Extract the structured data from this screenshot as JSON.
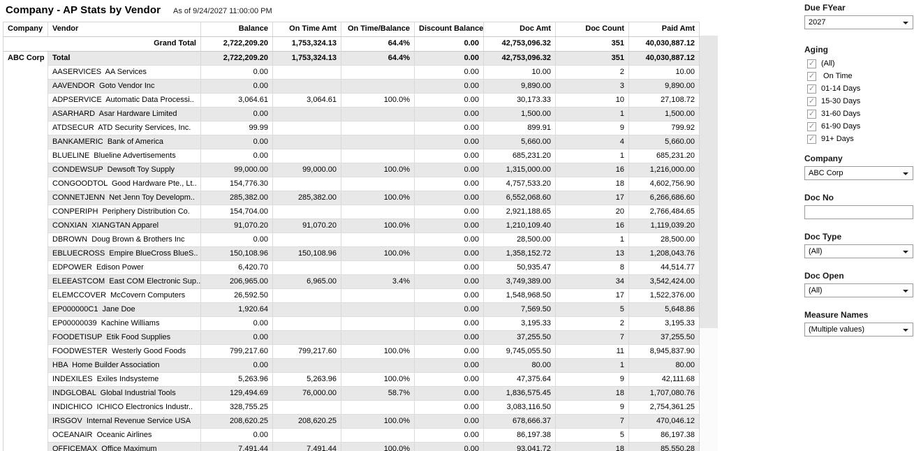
{
  "header": {
    "title": "Company - AP Stats by Vendor",
    "subtitle": "As of 9/24/2027 11:00:00 PM"
  },
  "colors": {
    "row_band": "#e8e8e8",
    "grid_border": "#d9d9d9",
    "strong_border": "#c9c9c9"
  },
  "table": {
    "columns": [
      "Company",
      "Vendor",
      "Balance",
      "On Time Amt",
      "On Time/Balance",
      "Discount Balance",
      "Doc Amt",
      "Doc Count",
      "Paid Amt"
    ],
    "grand_total": {
      "label": "Grand Total",
      "values": [
        "2,722,209.20",
        "1,753,324.13",
        "64.4%",
        "0.00",
        "42,753,096.32",
        "351",
        "40,030,887.12"
      ]
    },
    "company_total": {
      "company": "ABC Corp",
      "label": "Total",
      "values": [
        "2,722,209.20",
        "1,753,324.13",
        "64.4%",
        "0.00",
        "42,753,096.32",
        "351",
        "40,030,887.12"
      ]
    },
    "rows": [
      {
        "vendor": "AASERVICES  AA Services",
        "values": [
          "0.00",
          "",
          "",
          "0.00",
          "10.00",
          "2",
          "10.00"
        ]
      },
      {
        "vendor": "AAVENDOR  Goto Vendor Inc",
        "values": [
          "0.00",
          "",
          "",
          "0.00",
          "9,890.00",
          "3",
          "9,890.00"
        ]
      },
      {
        "vendor": "ADPSERVICE  Automatic Data Processi..",
        "values": [
          "3,064.61",
          "3,064.61",
          "100.0%",
          "0.00",
          "30,173.33",
          "10",
          "27,108.72"
        ]
      },
      {
        "vendor": "ASARHARD  Asar Hardware Limited",
        "values": [
          "0.00",
          "",
          "",
          "0.00",
          "1,500.00",
          "1",
          "1,500.00"
        ]
      },
      {
        "vendor": "ATDSECUR  ATD Security Services, Inc.",
        "values": [
          "99.99",
          "",
          "",
          "0.00",
          "899.91",
          "9",
          "799.92"
        ]
      },
      {
        "vendor": "BANKAMERIC  Bank of America",
        "values": [
          "0.00",
          "",
          "",
          "0.00",
          "5,660.00",
          "4",
          "5,660.00"
        ]
      },
      {
        "vendor": "BLUELINE  Blueline Advertisements",
        "values": [
          "0.00",
          "",
          "",
          "0.00",
          "685,231.20",
          "1",
          "685,231.20"
        ]
      },
      {
        "vendor": "CONDEWSUP  Dewsoft Toy Supply",
        "values": [
          "99,000.00",
          "99,000.00",
          "100.0%",
          "0.00",
          "1,315,000.00",
          "16",
          "1,216,000.00"
        ]
      },
      {
        "vendor": "CONGOODTOL  Good Hardware Pte., Lt..",
        "values": [
          "154,776.30",
          "",
          "",
          "0.00",
          "4,757,533.20",
          "18",
          "4,602,756.90"
        ]
      },
      {
        "vendor": "CONNETJENN  Net Jenn Toy Developm..",
        "values": [
          "285,382.00",
          "285,382.00",
          "100.0%",
          "0.00",
          "6,552,068.60",
          "17",
          "6,266,686.60"
        ]
      },
      {
        "vendor": "CONPERIPH  Periphery Distribution Co.",
        "values": [
          "154,704.00",
          "",
          "",
          "0.00",
          "2,921,188.65",
          "20",
          "2,766,484.65"
        ]
      },
      {
        "vendor": "CONXIAN  XIANGTAN Apparel",
        "values": [
          "91,070.20",
          "91,070.20",
          "100.0%",
          "0.00",
          "1,210,109.40",
          "16",
          "1,119,039.20"
        ]
      },
      {
        "vendor": "DBROWN  Doug Brown & Brothers Inc",
        "values": [
          "0.00",
          "",
          "",
          "0.00",
          "28,500.00",
          "1",
          "28,500.00"
        ]
      },
      {
        "vendor": "EBLUECROSS  Empire BlueCross BlueS..",
        "values": [
          "150,108.96",
          "150,108.96",
          "100.0%",
          "0.00",
          "1,358,152.72",
          "13",
          "1,208,043.76"
        ]
      },
      {
        "vendor": "EDPOWER  Edison Power",
        "values": [
          "6,420.70",
          "",
          "",
          "0.00",
          "50,935.47",
          "8",
          "44,514.77"
        ]
      },
      {
        "vendor": "ELEEASTCOM  East COM Electronic Sup..",
        "values": [
          "206,965.00",
          "6,965.00",
          "3.4%",
          "0.00",
          "3,749,389.00",
          "34",
          "3,542,424.00"
        ]
      },
      {
        "vendor": "ELEMCCOVER  McCovern Computers",
        "values": [
          "26,592.50",
          "",
          "",
          "0.00",
          "1,548,968.50",
          "17",
          "1,522,376.00"
        ]
      },
      {
        "vendor": "EP000000C1  Jane Doe",
        "values": [
          "1,920.64",
          "",
          "",
          "0.00",
          "7,569.50",
          "5",
          "5,648.86"
        ]
      },
      {
        "vendor": "EP00000039  Kachine Williams",
        "values": [
          "0.00",
          "",
          "",
          "0.00",
          "3,195.33",
          "2",
          "3,195.33"
        ]
      },
      {
        "vendor": "FOODETISUP  Etik Food Supplies",
        "values": [
          "0.00",
          "",
          "",
          "0.00",
          "37,255.50",
          "7",
          "37,255.50"
        ]
      },
      {
        "vendor": "FOODWESTER  Westerly Good Foods",
        "values": [
          "799,217.60",
          "799,217.60",
          "100.0%",
          "0.00",
          "9,745,055.50",
          "11",
          "8,945,837.90"
        ]
      },
      {
        "vendor": "HBA  Home Builder Association",
        "values": [
          "0.00",
          "",
          "",
          "0.00",
          "80.00",
          "1",
          "80.00"
        ]
      },
      {
        "vendor": "INDEXILES  Exiles Indsysteme",
        "values": [
          "5,263.96",
          "5,263.96",
          "100.0%",
          "0.00",
          "47,375.64",
          "9",
          "42,111.68"
        ]
      },
      {
        "vendor": "INDGLOBAL  Global Industrial Tools",
        "values": [
          "129,494.69",
          "76,000.00",
          "58.7%",
          "0.00",
          "1,836,575.45",
          "18",
          "1,707,080.76"
        ]
      },
      {
        "vendor": "INDICHICO  ICHICO Electronics Industr..",
        "values": [
          "328,755.25",
          "",
          "",
          "0.00",
          "3,083,116.50",
          "9",
          "2,754,361.25"
        ]
      },
      {
        "vendor": "IRSGOV  Internal Revenue Service USA",
        "values": [
          "208,620.25",
          "208,620.25",
          "100.0%",
          "0.00",
          "678,666.37",
          "7",
          "470,046.12"
        ]
      },
      {
        "vendor": "OCEANAIR  Oceanic Airlines",
        "values": [
          "0.00",
          "",
          "",
          "0.00",
          "86,197.38",
          "5",
          "86,197.38"
        ]
      },
      {
        "vendor": "OFFICEMAX  Office Maximum",
        "values": [
          "7,491.44",
          "7,491.44",
          "100.0%",
          "0.00",
          "93,041.72",
          "18",
          "85,550.28"
        ]
      }
    ]
  },
  "filters": {
    "due_fyear": {
      "label": "Due FYear",
      "value": "2027"
    },
    "aging": {
      "label": "Aging",
      "options": [
        "(All)",
        " On Time",
        "01-14 Days",
        "15-30 Days",
        "31-60 Days",
        "61-90 Days",
        "91+ Days"
      ],
      "checked": [
        true,
        true,
        true,
        true,
        true,
        true,
        true
      ],
      "check_glyph": "✓"
    },
    "company": {
      "label": "Company",
      "value": "ABC Corp"
    },
    "doc_no": {
      "label": "Doc No",
      "value": ""
    },
    "doc_type": {
      "label": "Doc Type",
      "value": "(All)"
    },
    "doc_open": {
      "label": "Doc Open",
      "value": "(All)"
    },
    "measure_names": {
      "label": "Measure Names",
      "value": "(Multiple values)"
    }
  }
}
